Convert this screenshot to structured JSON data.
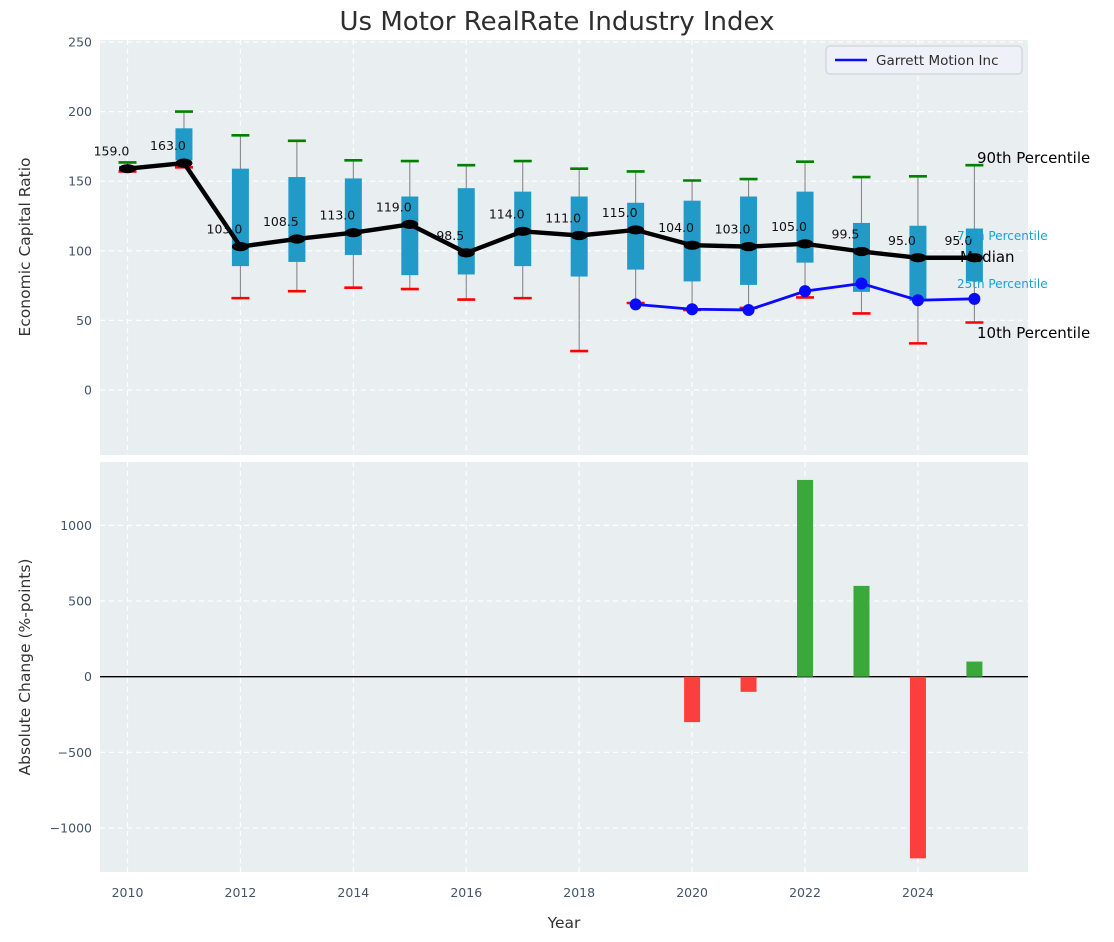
{
  "title": "Us Motor RealRate Industry Index",
  "chart_data": [
    {
      "type": "boxplot+line",
      "title": "Us Motor RealRate Industry Index",
      "ylabel": "Economic Capital Ratio",
      "ylim": [
        -47,
        251
      ],
      "grid": true,
      "yticks": [
        {
          "v": 0,
          "label": "0"
        },
        {
          "v": 50,
          "label": "50"
        },
        {
          "v": 100,
          "label": "100"
        },
        {
          "v": 150,
          "label": "150"
        },
        {
          "v": 200,
          "label": "200"
        },
        {
          "v": 250,
          "label": "250"
        }
      ],
      "years": [
        2010,
        2011,
        2012,
        2013,
        2014,
        2015,
        2016,
        2017,
        2018,
        2019,
        2020,
        2021,
        2022,
        2023,
        2024,
        2025
      ],
      "median": [
        159,
        163,
        103,
        108.5,
        113,
        119,
        98.5,
        114,
        111,
        115,
        104,
        103,
        105,
        99.5,
        95,
        95
      ],
      "median_labels": [
        "159.0",
        "163.0",
        "103.0",
        "108.5",
        "113.0",
        "119.0",
        "98.5",
        "114.0",
        "111.0",
        "115.0",
        "104.0",
        "103.0",
        "105.0",
        "99.5",
        "95.0",
        "95.0"
      ],
      "p90": [
        163.5,
        200,
        183,
        179,
        165,
        164.5,
        161.5,
        164.5,
        159,
        157,
        150.5,
        151.5,
        164,
        153,
        153.5,
        161.5
      ],
      "p75": [
        161,
        188,
        159,
        153,
        152,
        139,
        145,
        142.5,
        139,
        134.5,
        136,
        139,
        142.5,
        120,
        118,
        116
      ],
      "p25": [
        157.5,
        165,
        89,
        92,
        97,
        82.5,
        83,
        89,
        81.5,
        86.5,
        78,
        75.5,
        91.5,
        70.5,
        64,
        78
      ],
      "p10": [
        157,
        160,
        66,
        71,
        73.5,
        72.5,
        65,
        66,
        28,
        62.5,
        57.5,
        59,
        66.5,
        55,
        33.5,
        48.5
      ],
      "company": {
        "name": "Garrett Motion Inc",
        "years": [
          2019,
          2020,
          2021,
          2022,
          2023,
          2024,
          2025
        ],
        "values": [
          61.5,
          58,
          57.5,
          71,
          76.5,
          64.5,
          65.5
        ]
      },
      "legend": {
        "label": "Garrett Motion Inc",
        "position": "upper right"
      },
      "annotations": [
        {
          "text": "90th Percentile",
          "color": "#000000",
          "size": "big"
        },
        {
          "text": "75th Percentile",
          "color": "#1ba0d3",
          "size": "small"
        },
        {
          "text": "Median",
          "color": "#000000",
          "size": "big"
        },
        {
          "text": "25th Percentile",
          "color": "#1ba0d3",
          "size": "small"
        },
        {
          "text": "10th Percentile",
          "color": "#000000",
          "size": "big"
        }
      ],
      "colors": {
        "box": "#219ac8",
        "whisker": "#888888",
        "p90_cap": "#008000",
        "p10_cap": "#fe0000",
        "median": "#000000",
        "company": "#0a0aff",
        "annotation_accent": "#1ba0d3"
      }
    },
    {
      "type": "bar",
      "ylabel": "Absolute Change (%-points)",
      "xlabel": "Year",
      "ylim": [
        -1290,
        1418
      ],
      "grid": true,
      "yticks": [
        {
          "v": 1000,
          "label": "1000"
        },
        {
          "v": 500,
          "label": "500"
        },
        {
          "v": 0,
          "label": "0"
        },
        {
          "v": -500,
          "label": "−500"
        },
        {
          "v": -1000,
          "label": "−1000"
        }
      ],
      "xticks": [
        {
          "v": 2010,
          "label": "2010"
        },
        {
          "v": 2012,
          "label": "2012"
        },
        {
          "v": 2014,
          "label": "2014"
        },
        {
          "v": 2016,
          "label": "2016"
        },
        {
          "v": 2018,
          "label": "2018"
        },
        {
          "v": 2020,
          "label": "2020"
        },
        {
          "v": 2022,
          "label": "2022"
        },
        {
          "v": 2024,
          "label": "2024"
        }
      ],
      "bars": {
        "years": [
          2020,
          2021,
          2022,
          2023,
          2024,
          2025
        ],
        "values": [
          -300,
          -100,
          1300,
          600,
          -1200,
          100
        ]
      },
      "colors": {
        "positive": "#3aa83a",
        "negative": "#fb3e3e",
        "zero_line": "#000000"
      }
    }
  ]
}
